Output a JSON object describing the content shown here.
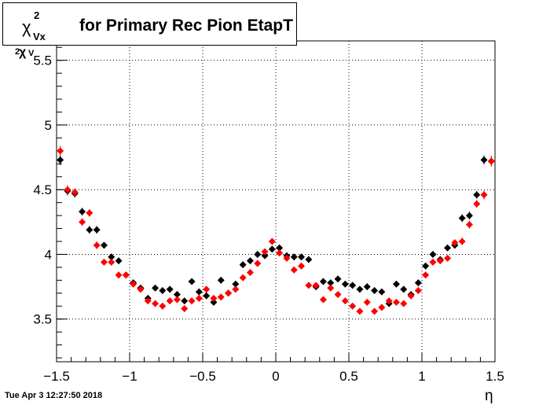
{
  "title": {
    "symbol": "χ",
    "superscript": "2",
    "subscript": "Vx",
    "text": "for Primary Rec Pion EtapT"
  },
  "timestamp": "Tue Apr  3 12:27:50 2018",
  "axes": {
    "x_title": "η",
    "y_title_symbol": "χ",
    "y_title_superscript": "2",
    "y_title_subscript": "V"
  },
  "chart_data": {
    "type": "scatter",
    "title": "χ²Vx for Primary Rec Pion EtapT",
    "xlabel": "η",
    "ylabel": "χ²V",
    "xlim": [
      -1.5,
      1.5
    ],
    "ylim": [
      3.17,
      5.65
    ],
    "grid": true,
    "x_ticks": [
      -1.5,
      -1,
      -0.5,
      0,
      0.5,
      1,
      1.5
    ],
    "x_tick_labels": [
      "−1.5",
      "−1",
      "−0.5",
      "0",
      "0.5",
      "1",
      "1.5"
    ],
    "y_ticks": [
      3.5,
      4,
      4.5,
      5,
      5.5
    ],
    "y_tick_labels": [
      "3.5",
      "4",
      "4.5",
      "5",
      "5.5"
    ],
    "x": [
      -1.475,
      -1.425,
      -1.375,
      -1.325,
      -1.275,
      -1.225,
      -1.175,
      -1.125,
      -1.075,
      -1.025,
      -0.975,
      -0.925,
      -0.875,
      -0.825,
      -0.775,
      -0.725,
      -0.675,
      -0.625,
      -0.575,
      -0.525,
      -0.475,
      -0.425,
      -0.375,
      -0.325,
      -0.275,
      -0.225,
      -0.175,
      -0.125,
      -0.075,
      -0.025,
      0.025,
      0.075,
      0.125,
      0.175,
      0.225,
      0.275,
      0.325,
      0.375,
      0.425,
      0.475,
      0.525,
      0.575,
      0.625,
      0.675,
      0.725,
      0.775,
      0.825,
      0.875,
      0.925,
      0.975,
      1.025,
      1.075,
      1.125,
      1.175,
      1.225,
      1.275,
      1.325,
      1.375,
      1.425,
      1.475
    ],
    "series": [
      {
        "color": "#000000",
        "marker": "diamond",
        "values": [
          4.73,
          4.49,
          4.47,
          4.33,
          4.19,
          4.19,
          4.07,
          3.98,
          3.95,
          3.84,
          3.78,
          3.74,
          3.66,
          3.74,
          3.72,
          3.73,
          3.69,
          3.64,
          3.79,
          3.71,
          3.68,
          3.63,
          3.8,
          3.7,
          3.77,
          3.92,
          3.95,
          4.0,
          3.99,
          4.04,
          4.05,
          3.99,
          3.98,
          3.98,
          3.96,
          3.75,
          3.79,
          3.78,
          3.81,
          3.77,
          3.76,
          3.73,
          3.75,
          3.72,
          3.71,
          3.62,
          3.77,
          3.73,
          3.69,
          3.78,
          3.91,
          4.0,
          3.96,
          4.05,
          4.07,
          4.28,
          4.3,
          4.46,
          4.73,
          4.72
        ],
        "errors": [
          0.04,
          0.035,
          0.03,
          0.03,
          0.03,
          0.03,
          0.025,
          0.025,
          0.025,
          0.025,
          0.025,
          0.025,
          0.025,
          0.025,
          0.025,
          0.025,
          0.025,
          0.025,
          0.025,
          0.025,
          0.025,
          0.025,
          0.025,
          0.025,
          0.025,
          0.025,
          0.025,
          0.025,
          0.025,
          0.025,
          0.025,
          0.025,
          0.025,
          0.025,
          0.025,
          0.025,
          0.025,
          0.025,
          0.025,
          0.025,
          0.025,
          0.025,
          0.025,
          0.025,
          0.025,
          0.025,
          0.025,
          0.025,
          0.025,
          0.025,
          0.025,
          0.025,
          0.025,
          0.025,
          0.025,
          0.03,
          0.03,
          0.03,
          0.035,
          0.04
        ]
      },
      {
        "color": "#ff0000",
        "marker": "diamond",
        "values": [
          4.8,
          4.5,
          4.48,
          4.25,
          4.32,
          4.07,
          3.94,
          3.94,
          3.84,
          3.84,
          3.77,
          3.73,
          3.64,
          3.62,
          3.6,
          3.64,
          3.65,
          3.58,
          3.64,
          3.66,
          3.73,
          3.66,
          3.67,
          3.7,
          3.73,
          3.82,
          3.86,
          3.93,
          4.02,
          4.1,
          4.01,
          3.97,
          3.88,
          3.91,
          3.76,
          3.76,
          3.65,
          3.74,
          3.69,
          3.64,
          3.6,
          3.56,
          3.63,
          3.56,
          3.59,
          3.64,
          3.63,
          3.62,
          3.68,
          3.72,
          3.84,
          3.94,
          3.95,
          3.97,
          4.09,
          4.1,
          4.23,
          4.39,
          4.46,
          4.72
        ],
        "errors": [
          0.04,
          0.035,
          0.03,
          0.03,
          0.03,
          0.03,
          0.025,
          0.025,
          0.025,
          0.025,
          0.025,
          0.025,
          0.025,
          0.025,
          0.025,
          0.025,
          0.025,
          0.025,
          0.025,
          0.025,
          0.025,
          0.025,
          0.025,
          0.025,
          0.025,
          0.025,
          0.025,
          0.025,
          0.025,
          0.025,
          0.025,
          0.025,
          0.025,
          0.025,
          0.025,
          0.025,
          0.025,
          0.025,
          0.025,
          0.025,
          0.025,
          0.025,
          0.025,
          0.025,
          0.025,
          0.025,
          0.025,
          0.025,
          0.025,
          0.025,
          0.025,
          0.025,
          0.025,
          0.025,
          0.025,
          0.03,
          0.03,
          0.03,
          0.035,
          0.04
        ]
      }
    ]
  }
}
